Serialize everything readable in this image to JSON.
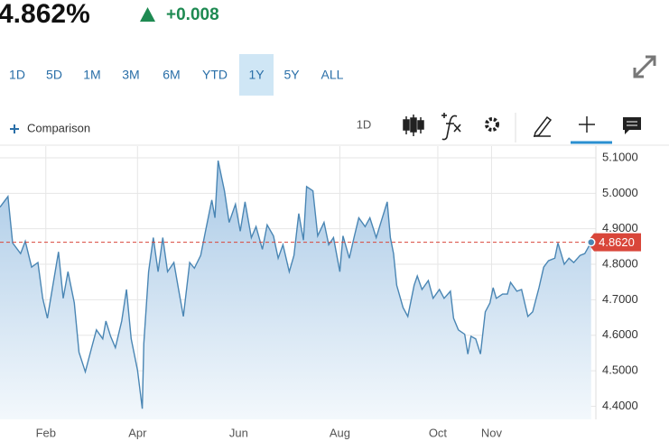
{
  "header": {
    "price": "4.862%",
    "change": "+0.008"
  },
  "range_buttons": [
    "1D",
    "5D",
    "1M",
    "3M",
    "6M",
    "YTD",
    "1Y",
    "5Y",
    "ALL"
  ],
  "selected_range": "1Y",
  "toolbar": {
    "comparison": "Comparison",
    "interval": "1D"
  },
  "chart_data": {
    "type": "area",
    "color": "#4a86b4",
    "fill": "#c9dff0",
    "x": [
      0,
      5,
      8,
      13,
      16,
      20,
      24,
      27,
      30,
      33,
      37,
      40,
      43,
      47,
      50,
      54,
      58,
      61,
      65,
      67,
      70,
      73,
      77,
      80,
      83,
      87,
      90,
      91,
      94,
      97,
      100,
      103,
      106,
      110,
      113,
      116,
      120,
      123,
      127,
      130,
      134,
      136,
      138,
      142,
      145,
      149,
      152,
      155,
      159,
      162,
      166,
      169,
      173,
      176,
      179,
      183,
      186,
      189,
      192,
      194,
      198,
      201,
      205,
      208,
      211,
      215,
      217,
      221,
      224,
      227,
      231,
      234,
      238,
      241,
      245,
      247,
      249,
      251,
      255,
      258,
      262,
      264,
      267,
      271,
      274,
      278,
      281,
      285,
      287,
      290,
      294,
      296,
      298,
      301,
      304,
      307,
      310,
      312,
      314,
      318,
      321,
      323,
      327,
      330,
      334,
      337,
      341,
      344,
      347,
      351,
      353,
      357,
      360,
      363,
      367,
      370,
      374
    ],
    "values": [
      4.961,
      4.991,
      4.86,
      4.83,
      4.865,
      4.792,
      4.805,
      4.704,
      4.648,
      4.729,
      4.835,
      4.704,
      4.779,
      4.691,
      4.552,
      4.497,
      4.565,
      4.615,
      4.59,
      4.64,
      4.597,
      4.565,
      4.64,
      4.729,
      4.59,
      4.502,
      4.393,
      4.577,
      4.779,
      4.875,
      4.779,
      4.875,
      4.779,
      4.805,
      4.729,
      4.653,
      4.805,
      4.789,
      4.825,
      4.893,
      4.981,
      4.931,
      5.092,
      5.007,
      4.918,
      4.969,
      4.893,
      4.976,
      4.875,
      4.906,
      4.842,
      4.911,
      4.88,
      4.817,
      4.855,
      4.779,
      4.825,
      4.943,
      4.868,
      5.019,
      5.007,
      4.88,
      4.918,
      4.855,
      4.875,
      4.779,
      4.88,
      4.817,
      4.875,
      4.931,
      4.906,
      4.931,
      4.875,
      4.918,
      4.976,
      4.875,
      4.83,
      4.741,
      4.678,
      4.653,
      4.741,
      4.767,
      4.729,
      4.754,
      4.704,
      4.729,
      4.704,
      4.724,
      4.648,
      4.615,
      4.603,
      4.547,
      4.597,
      4.59,
      4.547,
      4.666,
      4.691,
      4.734,
      4.704,
      4.716,
      4.716,
      4.749,
      4.724,
      4.729,
      4.653,
      4.666,
      4.734,
      4.792,
      4.81,
      4.817,
      4.86,
      4.8,
      4.817,
      4.805,
      4.825,
      4.83,
      4.862
    ],
    "xlim": [
      0,
      377
    ],
    "ylim": [
      4.363,
      5.133
    ],
    "xticks": [
      {
        "value": 29,
        "label": "Feb"
      },
      {
        "value": 87,
        "label": "Apr"
      },
      {
        "value": 151,
        "label": "Jun"
      },
      {
        "value": 215,
        "label": "Aug"
      },
      {
        "value": 277,
        "label": "Oct"
      },
      {
        "value": 311,
        "label": "Nov"
      }
    ],
    "yticks": [
      {
        "value": 4.4,
        "label": "4.4000"
      },
      {
        "value": 4.5,
        "label": "4.5000"
      },
      {
        "value": 4.6,
        "label": "4.6000"
      },
      {
        "value": 4.7,
        "label": "4.7000"
      },
      {
        "value": 4.8,
        "label": "4.8000"
      },
      {
        "value": 4.9,
        "label": "4.9000"
      },
      {
        "value": 5.0,
        "label": "5.0000"
      },
      {
        "value": 5.1,
        "label": "5.1000"
      }
    ],
    "grid": true,
    "last_price": {
      "value": 4.862,
      "label": "4.8620",
      "color": "#d9463a"
    }
  }
}
